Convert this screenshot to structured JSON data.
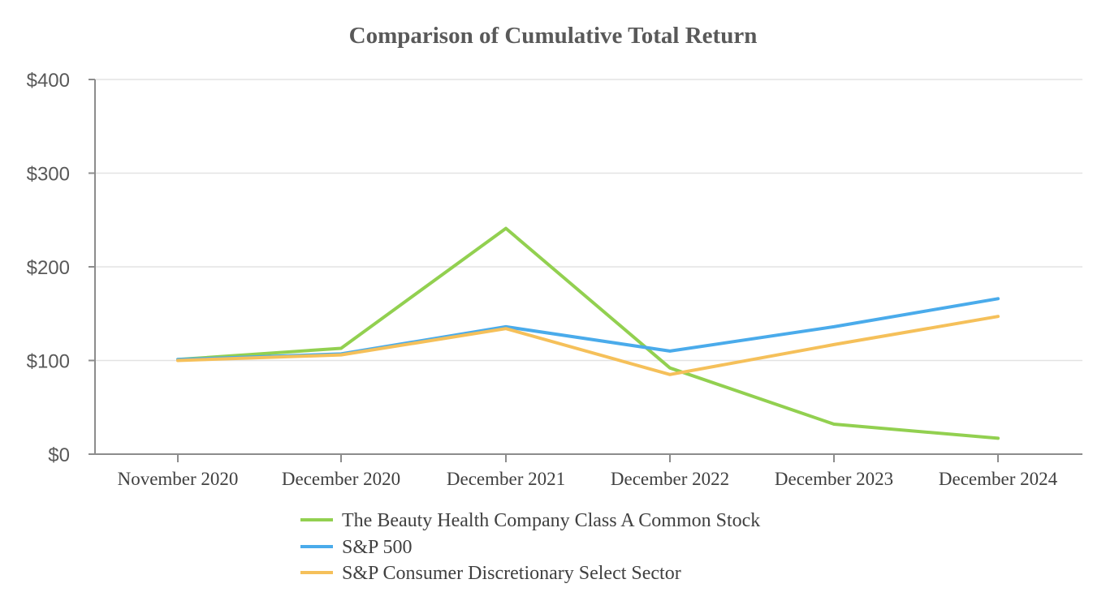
{
  "chart_data": {
    "type": "line",
    "title": "Comparison of Cumulative Total Return",
    "categories": [
      "November 2020",
      "December 2020",
      "December 2021",
      "December 2022",
      "December 2023",
      "December 2024"
    ],
    "ylim": [
      0,
      400
    ],
    "yticks": [
      0,
      100,
      200,
      300,
      400
    ],
    "ytick_labels": [
      "$0",
      "$100",
      "$200",
      "$300",
      "$400"
    ],
    "grid": true,
    "legend_position": "bottom",
    "series": [
      {
        "name": "The Beauty Health Company Class A Common Stock",
        "color": "#92d050",
        "values": [
          101,
          113,
          241,
          92,
          32,
          17
        ]
      },
      {
        "name": "S&P 500",
        "color": "#4aabeb",
        "values": [
          101,
          107,
          136,
          110,
          136,
          166
        ]
      },
      {
        "name": "S&P Consumer Discretionary Select Sector",
        "color": "#f5c05a",
        "values": [
          100,
          106,
          134,
          85,
          117,
          147
        ]
      }
    ]
  }
}
